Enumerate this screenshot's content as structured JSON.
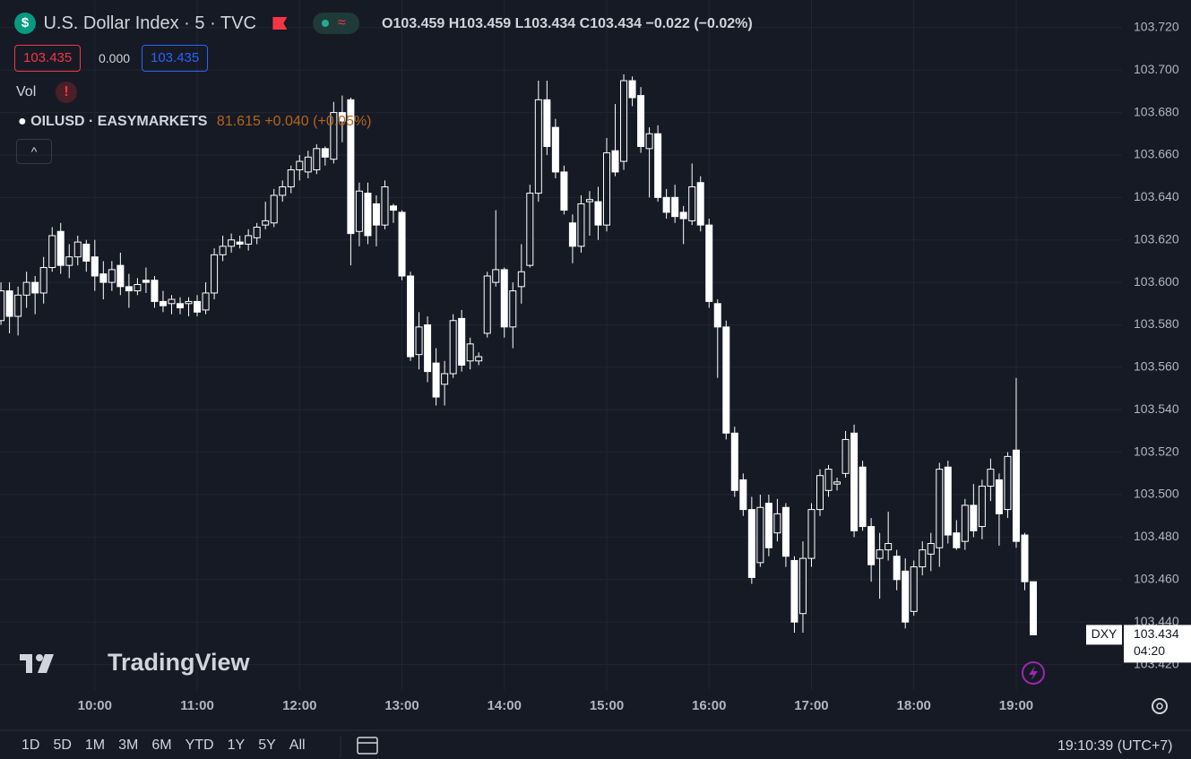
{
  "header": {
    "symbol": "U.S. Dollar Index · 5 · TVC",
    "open": "O103.459",
    "high": "H103.459",
    "low": "L103.434",
    "close": "C103.434",
    "change": "−0.022 (−0.02%)",
    "sell_price": "103.435",
    "spread": "0.000",
    "buy_price": "103.435",
    "volume_label": "Vol",
    "overlay_name": "OILUSD · EASYMARKETS",
    "overlay_price": "81.615",
    "overlay_change": "+0.040 (+0.05%)"
  },
  "watermark": "TradingView",
  "chart_data": {
    "type": "candlestick",
    "categories": [
      null,
      null,
      null,
      null,
      null,
      null,
      null,
      null,
      null,
      null,
      null,
      "10:00",
      null,
      null,
      null,
      null,
      null,
      null,
      null,
      null,
      null,
      null,
      null,
      "11:00",
      null,
      null,
      null,
      null,
      null,
      null,
      null,
      null,
      null,
      null,
      null,
      "12:00",
      null,
      null,
      null,
      null,
      null,
      null,
      null,
      null,
      null,
      null,
      null,
      "13:00",
      null,
      null,
      null,
      null,
      null,
      null,
      null,
      null,
      null,
      null,
      null,
      "14:00",
      null,
      null,
      null,
      null,
      null,
      null,
      null,
      null,
      null,
      null,
      null,
      "15:00",
      null,
      null,
      null,
      null,
      null,
      null,
      null,
      null,
      null,
      null,
      null,
      "16:00",
      null,
      null,
      null,
      null,
      null,
      null,
      null,
      null,
      null,
      null,
      null,
      "17:00",
      null,
      null,
      null,
      null,
      null,
      null,
      null,
      null,
      null,
      null,
      null,
      "18:00",
      null,
      null,
      null,
      null,
      null,
      null,
      null,
      null,
      null,
      null,
      null,
      "19:00",
      null,
      null
    ],
    "open": [
      103.582,
      103.596,
      103.584,
      103.594,
      103.6,
      103.595,
      103.607,
      103.624,
      103.608,
      103.612,
      103.618,
      103.612,
      103.604,
      103.6,
      103.608,
      103.598,
      103.596,
      103.601,
      103.601,
      103.591,
      103.59,
      103.59,
      103.59,
      103.591,
      103.587,
      103.595,
      103.613,
      103.617,
      103.619,
      103.618,
      103.621,
      103.627,
      103.628,
      103.641,
      103.645,
      103.653,
      103.652,
      103.653,
      103.663,
      103.658,
      103.68,
      103.686,
      103.624,
      103.642,
      103.637,
      103.627,
      103.636,
      103.633,
      103.603,
      103.566,
      103.58,
      103.562,
      103.552,
      103.557,
      103.583,
      103.563,
      103.563,
      103.576,
      103.6,
      103.606,
      103.579,
      103.598,
      103.608,
      103.642,
      103.686,
      103.673,
      103.652,
      103.628,
      103.617,
      103.638,
      103.638,
      103.627,
      103.662,
      103.657,
      103.695,
      103.688,
      103.663,
      103.67,
      103.64,
      103.64,
      103.633,
      103.629,
      103.647,
      103.627,
      103.59,
      103.579,
      103.529,
      103.507,
      103.493,
      103.468,
      103.496,
      103.482,
      103.494,
      103.469,
      103.444,
      103.47,
      103.493,
      103.502,
      103.505,
      103.51,
      103.529,
      103.513,
      103.485,
      103.47,
      103.474,
      103.471,
      103.464,
      103.445,
      103.466,
      103.472,
      103.475,
      103.513,
      103.482,
      103.478,
      103.495,
      103.485,
      103.504,
      103.507,
      103.493,
      103.521,
      103.481,
      103.459
    ],
    "high": [
      103.6,
      103.6,
      103.598,
      103.605,
      103.603,
      103.612,
      103.626,
      103.628,
      103.618,
      103.622,
      103.62,
      103.62,
      103.61,
      103.61,
      103.614,
      103.604,
      103.602,
      103.607,
      103.603,
      103.596,
      103.594,
      103.593,
      103.593,
      103.594,
      103.6,
      103.616,
      103.622,
      103.623,
      103.622,
      103.625,
      103.628,
      103.638,
      103.644,
      103.648,
      103.655,
      103.66,
      103.662,
      103.665,
      103.664,
      103.685,
      103.688,
      103.687,
      103.647,
      103.647,
      103.641,
      103.648,
      103.637,
      103.634,
      103.605,
      103.586,
      103.584,
      103.569,
      103.563,
      103.585,
      103.587,
      103.574,
      103.567,
      103.605,
      103.634,
      103.607,
      103.6,
      103.618,
      103.646,
      103.695,
      103.695,
      103.677,
      103.655,
      103.632,
      103.641,
      103.643,
      103.645,
      103.668,
      103.684,
      103.698,
      103.697,
      103.692,
      103.673,
      103.674,
      103.644,
      103.646,
      103.636,
      103.656,
      103.65,
      103.63,
      103.592,
      103.582,
      103.532,
      103.51,
      103.499,
      103.5,
      103.5,
      103.498,
      103.496,
      103.471,
      103.478,
      103.496,
      103.512,
      103.514,
      103.508,
      103.53,
      103.533,
      103.516,
      103.489,
      103.482,
      103.492,
      103.474,
      103.47,
      103.469,
      103.478,
      103.482,
      103.515,
      103.516,
      103.488,
      103.498,
      103.505,
      103.507,
      103.517,
      103.51,
      103.52,
      103.555,
      103.482,
      103.459
    ],
    "low": [
      103.58,
      103.576,
      103.575,
      103.588,
      103.585,
      103.59,
      103.605,
      103.604,
      103.602,
      103.608,
      103.605,
      103.596,
      103.592,
      103.596,
      103.594,
      103.588,
      103.594,
      103.595,
      103.588,
      103.586,
      103.585,
      103.585,
      103.584,
      103.584,
      103.585,
      103.592,
      103.61,
      103.614,
      103.616,
      103.615,
      103.618,
      103.625,
      103.626,
      103.638,
      103.642,
      103.648,
      103.649,
      103.651,
      103.655,
      103.656,
      103.666,
      103.608,
      103.617,
      103.618,
      103.617,
      103.625,
      103.628,
      103.601,
      103.563,
      103.559,
      103.553,
      103.542,
      103.542,
      103.555,
      103.558,
      103.559,
      103.561,
      103.574,
      103.598,
      103.574,
      103.569,
      103.59,
      103.607,
      103.638,
      103.66,
      103.649,
      103.632,
      103.609,
      103.614,
      103.622,
      103.62,
      103.624,
      103.65,
      103.653,
      103.683,
      103.661,
      103.64,
      103.638,
      103.63,
      103.628,
      103.618,
      103.627,
      103.624,
      103.588,
      103.555,
      103.526,
      103.499,
      103.49,
      103.458,
      103.466,
      103.471,
      103.478,
      103.466,
      103.435,
      103.435,
      103.466,
      103.49,
      103.499,
      103.502,
      103.508,
      103.48,
      103.483,
      103.459,
      103.451,
      103.469,
      103.455,
      103.437,
      103.443,
      103.462,
      103.464,
      103.466,
      103.477,
      103.474,
      103.474,
      103.48,
      103.479,
      103.497,
      103.476,
      103.489,
      103.475,
      103.455,
      103.434
    ],
    "close": [
      103.596,
      103.584,
      103.594,
      103.6,
      103.595,
      103.607,
      103.622,
      103.608,
      103.612,
      103.619,
      103.61,
      103.603,
      103.6,
      103.606,
      103.598,
      103.596,
      103.599,
      103.6,
      103.591,
      103.589,
      103.592,
      103.588,
      103.591,
      103.586,
      103.595,
      103.613,
      103.617,
      103.62,
      103.618,
      103.622,
      103.626,
      103.629,
      103.641,
      103.645,
      103.653,
      103.657,
      103.659,
      103.663,
      103.659,
      103.68,
      103.676,
      103.623,
      103.643,
      103.622,
      103.627,
      103.645,
      103.634,
      103.603,
      103.565,
      103.579,
      103.558,
      103.546,
      103.557,
      103.582,
      103.561,
      103.571,
      103.565,
      103.603,
      103.606,
      103.579,
      103.596,
      103.605,
      103.642,
      103.686,
      103.664,
      103.652,
      103.634,
      103.617,
      103.637,
      103.639,
      103.627,
      103.661,
      103.652,
      103.695,
      103.687,
      103.664,
      103.67,
      103.64,
      103.633,
      103.631,
      103.63,
      103.645,
      103.627,
      103.591,
      103.579,
      103.529,
      103.502,
      103.493,
      103.461,
      103.494,
      103.475,
      103.491,
      103.471,
      103.44,
      103.47,
      103.493,
      103.509,
      103.512,
      103.506,
      103.526,
      103.483,
      103.485,
      103.467,
      103.474,
      103.477,
      103.46,
      103.44,
      103.466,
      103.474,
      103.477,
      103.512,
      103.481,
      103.475,
      103.495,
      103.483,
      103.504,
      103.512,
      103.491,
      103.518,
      103.478,
      103.459,
      103.434
    ],
    "color": "#ffffff",
    "ylim": [
      103.408,
      103.733
    ],
    "yticks": [
      {
        "value": 103.72,
        "label": "103.720"
      },
      {
        "value": 103.7,
        "label": "103.700"
      },
      {
        "value": 103.68,
        "label": "103.680"
      },
      {
        "value": 103.66,
        "label": "103.660"
      },
      {
        "value": 103.64,
        "label": "103.640"
      },
      {
        "value": 103.62,
        "label": "103.620"
      },
      {
        "value": 103.6,
        "label": "103.600"
      },
      {
        "value": 103.58,
        "label": "103.580"
      },
      {
        "value": 103.56,
        "label": "103.560"
      },
      {
        "value": 103.54,
        "label": "103.540"
      },
      {
        "value": 103.52,
        "label": "103.520"
      },
      {
        "value": 103.5,
        "label": "103.500"
      },
      {
        "value": 103.48,
        "label": "103.480"
      },
      {
        "value": 103.46,
        "label": "103.460"
      },
      {
        "value": 103.44,
        "label": "103.440"
      },
      {
        "value": 103.42,
        "label": "103.420"
      }
    ],
    "grid": true,
    "price_symbol": "DXY",
    "last_price": 103.434,
    "countdown": "04:20"
  },
  "toolbar": {
    "ranges": [
      "1D",
      "5D",
      "1M",
      "3M",
      "6M",
      "YTD",
      "1Y",
      "5Y",
      "All"
    ],
    "clock": "19:10:39 (UTC+7)"
  }
}
